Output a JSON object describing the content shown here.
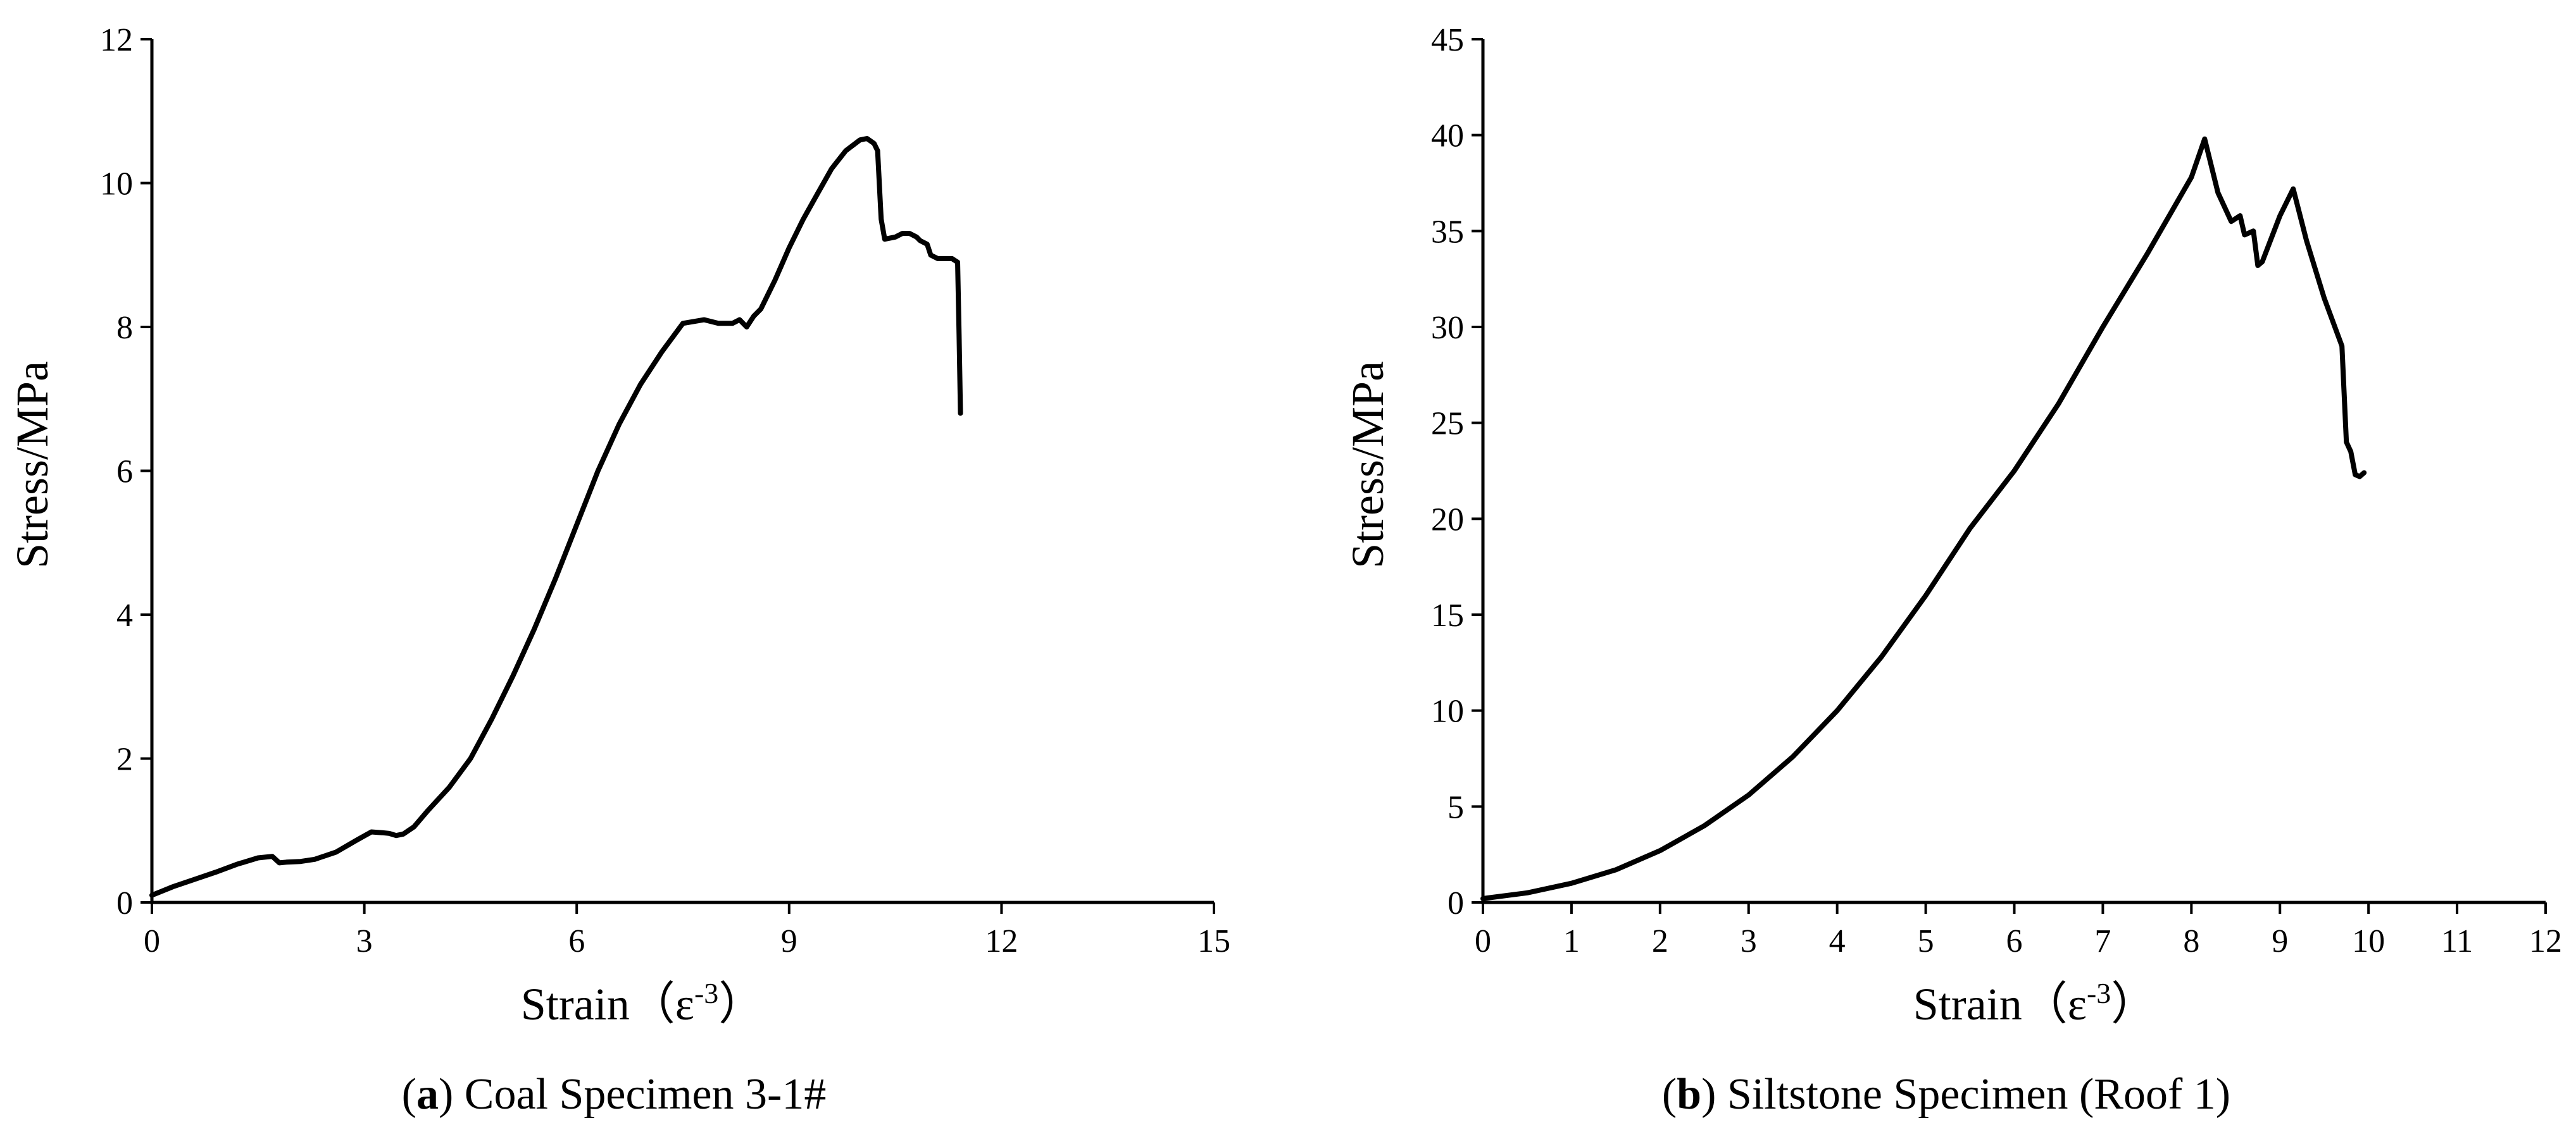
{
  "chart_data": [
    {
      "type": "line",
      "panel_label": "a",
      "caption": "Coal Specimen 3-1#",
      "xlabel": "Strain（ε",
      "xlabel_sup": "-3",
      "xlabel_close": "）",
      "ylabel": "Stress/MPa",
      "xlim": [
        0,
        15
      ],
      "ylim": [
        0,
        12
      ],
      "xticks": [
        "0",
        "3",
        "6",
        "9",
        "12",
        "15"
      ],
      "yticks": [
        "0",
        "2",
        "4",
        "6",
        "8",
        "10",
        "12"
      ],
      "grid": false,
      "series": [
        {
          "x": [
            0,
            0.3,
            0.6,
            0.9,
            1.2,
            1.5,
            1.7,
            1.8,
            1.9,
            2.1,
            2.3,
            2.6,
            2.9,
            3.1,
            3.25,
            3.35,
            3.45,
            3.55,
            3.7,
            3.9,
            4.2,
            4.5,
            4.8,
            5.1,
            5.4,
            5.7,
            6.0,
            6.3,
            6.6,
            6.9,
            7.2,
            7.5,
            7.8,
            8.0,
            8.2,
            8.3,
            8.4,
            8.5,
            8.6,
            8.8,
            9.0,
            9.2,
            9.4,
            9.6,
            9.8,
            10.0,
            10.1,
            10.2,
            10.25,
            10.3,
            10.35,
            10.5,
            10.6,
            10.7,
            10.8,
            10.85,
            10.95,
            11.0,
            11.1,
            11.2,
            11.3,
            11.38,
            11.4,
            11.42
          ],
          "y": [
            0.1,
            0.22,
            0.32,
            0.42,
            0.53,
            0.62,
            0.64,
            0.55,
            0.56,
            0.57,
            0.6,
            0.7,
            0.87,
            0.98,
            0.97,
            0.96,
            0.93,
            0.95,
            1.05,
            1.28,
            1.6,
            2.0,
            2.55,
            3.15,
            3.8,
            4.5,
            5.25,
            6.0,
            6.65,
            7.2,
            7.65,
            8.05,
            8.1,
            8.05,
            8.05,
            8.1,
            8.0,
            8.15,
            8.25,
            8.65,
            9.1,
            9.5,
            9.85,
            10.2,
            10.45,
            10.6,
            10.62,
            10.55,
            10.45,
            9.5,
            9.22,
            9.25,
            9.3,
            9.3,
            9.25,
            9.2,
            9.15,
            9.0,
            8.95,
            8.95,
            8.95,
            8.9,
            7.9,
            6.8
          ]
        }
      ]
    },
    {
      "type": "line",
      "panel_label": "b",
      "caption": "Siltstone Specimen (Roof 1)",
      "xlabel": "Strain（ε",
      "xlabel_sup": "-3",
      "xlabel_close": "）",
      "ylabel": "Stress/MPa",
      "xlim": [
        0,
        12
      ],
      "ylim": [
        0,
        45
      ],
      "xticks": [
        "0",
        "1",
        "2",
        "3",
        "4",
        "5",
        "6",
        "7",
        "8",
        "9",
        "10",
        "11",
        "12"
      ],
      "yticks": [
        "0",
        "5",
        "10",
        "15",
        "20",
        "25",
        "30",
        "35",
        "40",
        "45"
      ],
      "grid": false,
      "series": [
        {
          "x": [
            0,
            0.5,
            1.0,
            1.5,
            2.0,
            2.5,
            3.0,
            3.5,
            4.0,
            4.5,
            5.0,
            5.5,
            6.0,
            6.5,
            7.0,
            7.5,
            8.0,
            8.15,
            8.3,
            8.45,
            8.55,
            8.6,
            8.7,
            8.75,
            8.8,
            9.0,
            9.15,
            9.3,
            9.5,
            9.7,
            9.75,
            9.8,
            9.85,
            9.9,
            9.95
          ],
          "y": [
            0.2,
            0.5,
            1.0,
            1.7,
            2.7,
            4.0,
            5.6,
            7.6,
            10.0,
            12.8,
            16.0,
            19.5,
            22.5,
            26.0,
            30.0,
            33.8,
            37.8,
            39.8,
            37.0,
            35.5,
            35.8,
            34.8,
            35.0,
            33.2,
            33.4,
            35.8,
            37.2,
            34.5,
            31.5,
            29.0,
            24.0,
            23.5,
            22.3,
            22.2,
            22.4
          ]
        }
      ]
    }
  ]
}
